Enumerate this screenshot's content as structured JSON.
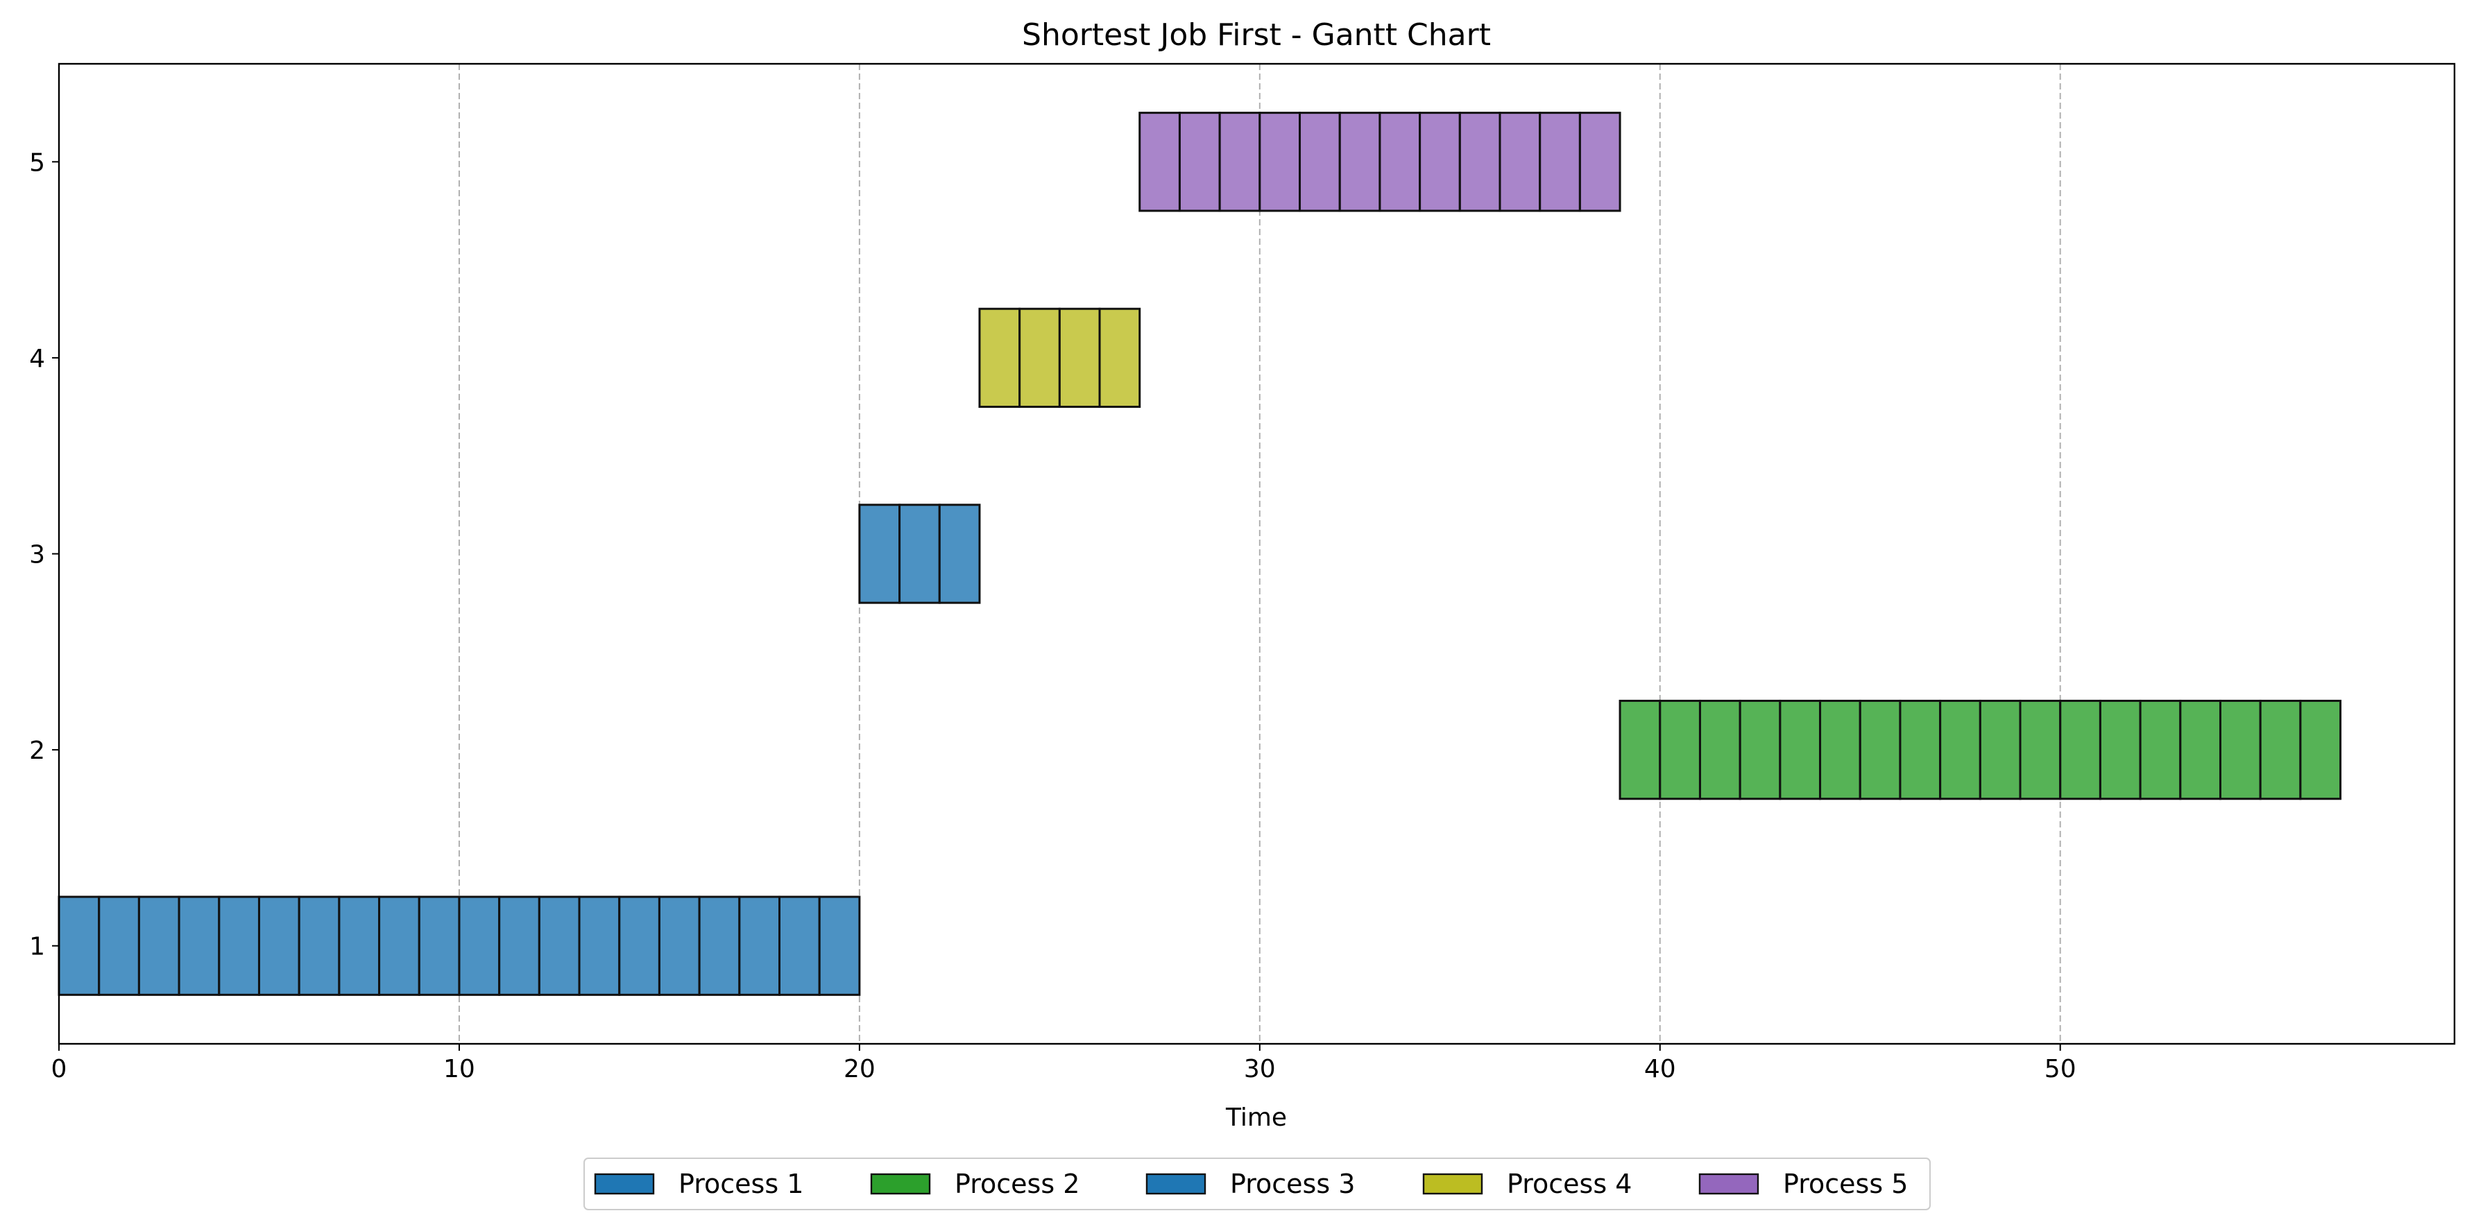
{
  "chart_data": {
    "type": "gantt",
    "title": "Shortest Job First - Gantt Chart",
    "xlabel": "Time",
    "ylabel": "",
    "xlim": [
      0,
      59.85
    ],
    "ylim": [
      0.5,
      5.5
    ],
    "x_ticks": [
      0,
      10,
      20,
      30,
      40,
      50
    ],
    "y_ticks": [
      1,
      2,
      3,
      4,
      5
    ],
    "grid": {
      "x": true,
      "y": false,
      "style": "dashed"
    },
    "legend_position": "bottom-center",
    "bar_height": 0.5,
    "unit_width": 1,
    "series": [
      {
        "name": "Process 1",
        "row": 1,
        "start": 0,
        "end": 20,
        "color": "#1f77b4",
        "fill_alpha": 0.8
      },
      {
        "name": "Process 2",
        "row": 2,
        "start": 39,
        "end": 57,
        "color": "#2ca02c",
        "fill_alpha": 0.8
      },
      {
        "name": "Process 3",
        "row": 3,
        "start": 20,
        "end": 23,
        "color": "#1f77b4",
        "fill_alpha": 0.8
      },
      {
        "name": "Process 4",
        "row": 4,
        "start": 23,
        "end": 27,
        "color": "#bcbd22",
        "fill_alpha": 0.8
      },
      {
        "name": "Process 5",
        "row": 5,
        "start": 27,
        "end": 39,
        "color": "#9467bd",
        "fill_alpha": 0.8
      }
    ]
  }
}
